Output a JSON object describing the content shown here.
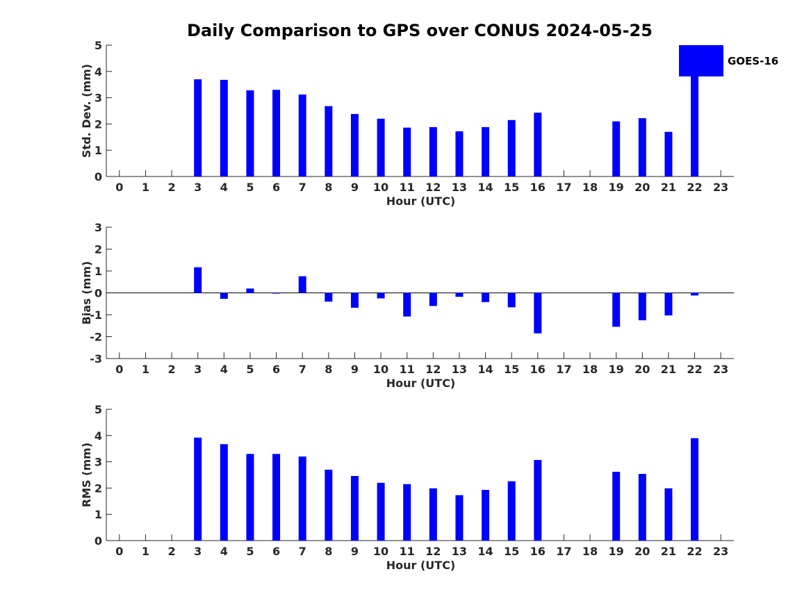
{
  "chart_data": {
    "type": "bar",
    "title": "Daily Comparison to GPS over CONUS 2024-05-25",
    "legend": {
      "entries": [
        "GOES-16"
      ],
      "placement": "top-right"
    },
    "series_color": "#0000ff",
    "categories": [
      "0",
      "1",
      "2",
      "3",
      "4",
      "5",
      "6",
      "7",
      "8",
      "9",
      "10",
      "11",
      "12",
      "13",
      "14",
      "15",
      "16",
      "17",
      "18",
      "19",
      "20",
      "21",
      "22",
      "23"
    ],
    "xlabel": "Hour (UTC)",
    "panels": [
      {
        "name": "std-dev",
        "ylabel": "Std. Dev. (mm)",
        "ylim": [
          0,
          5
        ],
        "yticks": [
          "0",
          "1",
          "2",
          "3",
          "4",
          "5"
        ],
        "series": [
          {
            "name": "GOES-16",
            "values": [
              null,
              null,
              null,
              3.7,
              3.68,
              3.28,
              3.3,
              3.12,
              2.68,
              2.38,
              2.2,
              1.86,
              1.88,
              1.72,
              1.88,
              2.15,
              2.43,
              null,
              null,
              2.1,
              2.22,
              1.7,
              3.85,
              null
            ]
          }
        ]
      },
      {
        "name": "bias",
        "ylabel": "Bias (mm)",
        "ylim": [
          -3,
          3
        ],
        "yticks": [
          "-3",
          "-2",
          "-1",
          "0",
          "1",
          "2",
          "3"
        ],
        "zero_line": true,
        "series": [
          {
            "name": "GOES-16",
            "values": [
              null,
              null,
              null,
              1.17,
              -0.27,
              0.2,
              -0.02,
              0.76,
              -0.4,
              -0.68,
              -0.25,
              -1.08,
              -0.6,
              -0.18,
              -0.42,
              -0.66,
              -1.85,
              null,
              null,
              -1.55,
              -1.25,
              -1.03,
              -0.12,
              null
            ]
          }
        ]
      },
      {
        "name": "rms",
        "ylabel": "RMS (mm)",
        "ylim": [
          0,
          5
        ],
        "yticks": [
          "0",
          "1",
          "2",
          "3",
          "4",
          "5"
        ],
        "series": [
          {
            "name": "GOES-16",
            "values": [
              null,
              null,
              null,
              3.92,
              3.67,
              3.3,
              3.3,
              3.2,
              2.7,
              2.46,
              2.2,
              2.15,
              1.99,
              1.73,
              1.93,
              2.26,
              3.07,
              null,
              null,
              2.62,
              2.54,
              1.99,
              3.9,
              null
            ]
          }
        ]
      }
    ]
  }
}
